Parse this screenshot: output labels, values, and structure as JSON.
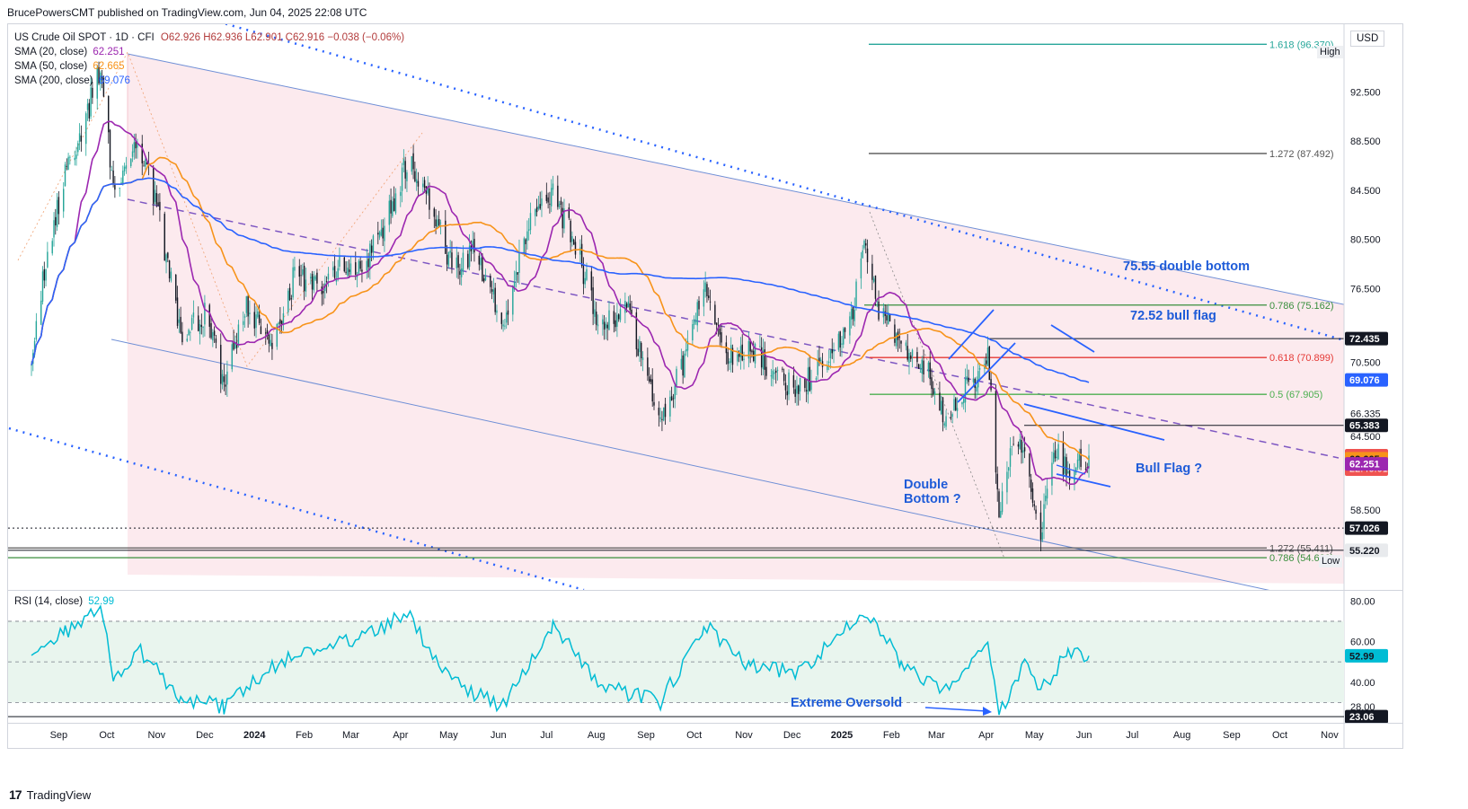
{
  "header": {
    "publish_line": "BrucePowersCMT published on TradingView.com, Jun 04, 2025 22:08 UTC"
  },
  "legend": {
    "symbol": "US Crude Oil SPOT · 1D · CFI",
    "ohlc": "O62.926 H62.936 L62.901 C62.916 −0.038 (−0.06%)",
    "sma20_label": "SMA (20, close)",
    "sma20_value": "62.251",
    "sma50_label": "SMA (50, close)",
    "sma50_value": "62.665",
    "sma200_label": "SMA (200, close)",
    "sma200_value": "69.076"
  },
  "rsi_legend": {
    "label": "RSI (14, close)",
    "value": "52.99"
  },
  "currency": "USD",
  "high_label": "High",
  "low_label": "Low",
  "colors": {
    "up": "#26a69a",
    "down": "#131722",
    "sma20": "#9c27b0",
    "sma50": "#f7931a",
    "sma200": "#2962ff",
    "channel_fill": "#fce8ec",
    "rsi_line": "#00bcd4",
    "annotation": "#1e5bd8"
  },
  "annotations": {
    "double_bottom_level": "75.55 double bottom",
    "bull_flag_level": "72.52 bull flag",
    "double_bottom_q_line1": "Double",
    "double_bottom_q_line2": "Bottom ?",
    "bull_flag_q": "Bull Flag ?",
    "extreme_oversold": "Extreme Oversold"
  },
  "fib_levels": [
    {
      "label": "1.618 (96.370)",
      "price": 96.37,
      "color": "#26a69a"
    },
    {
      "label": "1.272 (87.492)",
      "price": 87.492,
      "color": "#555555"
    },
    {
      "label": "0.786 (75.162)",
      "price": 75.162,
      "color": "#388e3c"
    },
    {
      "label": "0.618 (70.899)",
      "price": 70.899,
      "color": "#e53935"
    },
    {
      "label": "0.5 (67.905)",
      "price": 67.905,
      "color": "#4caf50"
    },
    {
      "label": "1.272 (55.411)",
      "price": 55.411,
      "color": "#555555"
    },
    {
      "label": "0.786 (54.620)",
      "price": 54.62,
      "color": "#388e3c"
    }
  ],
  "horizontal_lines": [
    {
      "price": 72.435,
      "color": "#131722"
    },
    {
      "price": 65.383,
      "color": "#131722"
    },
    {
      "price": 57.026,
      "color": "#131722",
      "dotted": true
    },
    {
      "price": 55.22,
      "color": "#131722"
    }
  ],
  "price_badges": [
    {
      "text": "72.435",
      "price": 72.435,
      "bg": "#131722",
      "fg": "#ffffff"
    },
    {
      "text": "69.076",
      "price": 69.076,
      "bg": "#2962ff",
      "fg": "#ffffff"
    },
    {
      "text": "65.383",
      "price": 65.383,
      "bg": "#131722",
      "fg": "#ffffff"
    },
    {
      "text": "62.916",
      "text2": "22:46:01",
      "price": 62.916,
      "bg": "#ef5350",
      "fg": "#ffffff"
    },
    {
      "text": "62.665",
      "price": 62.665,
      "bg": "#f7931a",
      "fg": "#131722"
    },
    {
      "text": "62.251",
      "price": 62.251,
      "bg": "#9c27b0",
      "fg": "#ffffff"
    },
    {
      "text": "57.026",
      "price": 57.026,
      "bg": "#131722",
      "fg": "#ffffff"
    },
    {
      "text": "55.220",
      "price": 55.22,
      "bg": "#e8eaed",
      "fg": "#131722"
    }
  ],
  "rsi_badges": [
    {
      "text": "52.99",
      "value": 52.99,
      "bg": "#00bcd4",
      "fg": "#131722"
    },
    {
      "text": "23.06",
      "value": 23.06,
      "bg": "#131722",
      "fg": "#ffffff"
    }
  ],
  "footer": {
    "brand": "TradingView",
    "logo": "17"
  },
  "chart_data": {
    "type": "candlestick",
    "title": "US Crude Oil SPOT · 1D · CFI",
    "ylabel": "USD",
    "ylim": [
      52.0,
      98.0
    ],
    "y_ticks": [
      "92.500",
      "88.500",
      "84.500",
      "80.500",
      "76.500",
      "70.500",
      "66.335",
      "64.500",
      "58.500"
    ],
    "x_ticks": [
      "Sep",
      "Oct",
      "Nov",
      "Dec",
      "2024",
      "Feb",
      "Mar",
      "Apr",
      "May",
      "Jun",
      "Jul",
      "Aug",
      "Sep",
      "Oct",
      "Nov",
      "Dec",
      "2025",
      "Feb",
      "Mar",
      "Apr",
      "May",
      "Jun",
      "Jul",
      "Aug",
      "Sep",
      "Oct",
      "Nov"
    ],
    "close_anchors": [
      [
        "2023-08-15",
        70.5
      ],
      [
        "2023-08-25",
        79.5
      ],
      [
        "2023-09-05",
        85.5
      ],
      [
        "2023-09-18",
        90.5
      ],
      [
        "2023-09-27",
        94.6
      ],
      [
        "2023-10-06",
        83.5
      ],
      [
        "2023-10-20",
        89.0
      ],
      [
        "2023-11-02",
        82.5
      ],
      [
        "2023-11-16",
        73.0
      ],
      [
        "2023-12-01",
        74.5
      ],
      [
        "2023-12-13",
        68.7
      ],
      [
        "2023-12-26",
        75.0
      ],
      [
        "2024-01-12",
        72.5
      ],
      [
        "2024-01-26",
        77.5
      ],
      [
        "2024-02-09",
        76.5
      ],
      [
        "2024-02-23",
        78.5
      ],
      [
        "2024-03-08",
        78.0
      ],
      [
        "2024-03-22",
        81.5
      ],
      [
        "2024-04-05",
        86.9
      ],
      [
        "2024-04-19",
        83.5
      ],
      [
        "2024-05-03",
        78.2
      ],
      [
        "2024-05-17",
        79.5
      ],
      [
        "2024-06-04",
        73.5
      ],
      [
        "2024-06-20",
        81.5
      ],
      [
        "2024-07-05",
        84.0
      ],
      [
        "2024-07-19",
        80.0
      ],
      [
        "2024-08-05",
        73.0
      ],
      [
        "2024-08-19",
        75.5
      ],
      [
        "2024-09-10",
        66.0
      ],
      [
        "2024-09-25",
        70.5
      ],
      [
        "2024-10-07",
        77.5
      ],
      [
        "2024-10-21",
        71.0
      ],
      [
        "2024-11-05",
        72.0
      ],
      [
        "2024-11-20",
        69.0
      ],
      [
        "2024-12-05",
        68.5
      ],
      [
        "2024-12-20",
        70.0
      ],
      [
        "2025-01-07",
        74.0
      ],
      [
        "2025-01-15",
        80.0
      ],
      [
        "2025-01-24",
        75.0
      ],
      [
        "2025-02-07",
        71.5
      ],
      [
        "2025-02-21",
        70.5
      ],
      [
        "2025-03-05",
        66.5
      ],
      [
        "2025-03-12",
        66.8
      ],
      [
        "2025-03-26",
        69.5
      ],
      [
        "2025-04-02",
        71.5
      ],
      [
        "2025-04-09",
        57.5
      ],
      [
        "2025-04-17",
        64.5
      ],
      [
        "2025-04-25",
        63.5
      ],
      [
        "2025-05-05",
        56.8
      ],
      [
        "2025-05-13",
        63.5
      ],
      [
        "2025-05-22",
        61.5
      ],
      [
        "2025-06-04",
        62.92
      ]
    ],
    "sma20": {
      "name": "SMA (20, close)",
      "last": 62.251
    },
    "sma50": {
      "name": "SMA (50, close)",
      "last": 62.665
    },
    "sma200": {
      "name": "SMA (200, close)",
      "last": 69.076
    },
    "rsi": {
      "name": "RSI (14, close)",
      "last": 52.99,
      "ylim": [
        20,
        85
      ],
      "y_ticks": [
        "80.00",
        "60.00",
        "40.00",
        "28.00"
      ],
      "anchors": [
        [
          "2023-08-15",
          50
        ],
        [
          "2023-09-05",
          65
        ],
        [
          "2023-09-27",
          76
        ],
        [
          "2023-10-06",
          40
        ],
        [
          "2023-10-20",
          57
        ],
        [
          "2023-11-16",
          32
        ],
        [
          "2023-12-13",
          28
        ],
        [
          "2024-01-12",
          47
        ],
        [
          "2024-02-09",
          58
        ],
        [
          "2024-03-08",
          62
        ],
        [
          "2024-04-05",
          74
        ],
        [
          "2024-05-03",
          40
        ],
        [
          "2024-06-04",
          28
        ],
        [
          "2024-07-05",
          68
        ],
        [
          "2024-08-05",
          38
        ],
        [
          "2024-09-10",
          30
        ],
        [
          "2024-10-07",
          68
        ],
        [
          "2024-11-05",
          48
        ],
        [
          "2024-12-05",
          44
        ],
        [
          "2025-01-15",
          76
        ],
        [
          "2025-02-07",
          50
        ],
        [
          "2025-03-05",
          34
        ],
        [
          "2025-04-02",
          62
        ],
        [
          "2025-04-09",
          23.06
        ],
        [
          "2025-04-25",
          50
        ],
        [
          "2025-05-05",
          36
        ],
        [
          "2025-05-22",
          55
        ],
        [
          "2025-06-04",
          52.99
        ]
      ]
    }
  }
}
